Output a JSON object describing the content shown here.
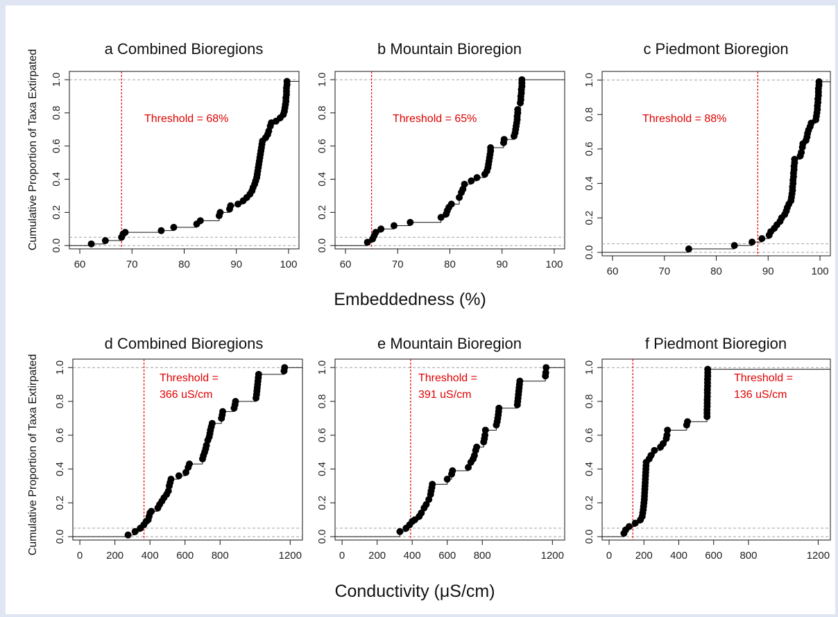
{
  "figure": {
    "ylabel_top": "Cumulative Proportion of Taxa Extirpated",
    "ylabel_bottom": "Cumulative Proportion of Taxa Extirpated",
    "xlabel_top": "Embeddedness (%)",
    "xlabel_bottom": "Conductivity (μS/cm)"
  },
  "colors": {
    "points": "#000000",
    "threshold": "#e00000",
    "refline": "#a0a0a0"
  },
  "chart_data": [
    {
      "id": "a",
      "type": "scatter",
      "title": "a  Combined Bioregions",
      "xlim": [
        58,
        102
      ],
      "ylim": [
        -0.02,
        1.05
      ],
      "xticks": [
        60,
        70,
        80,
        90,
        100
      ],
      "yticks": [
        0.0,
        0.2,
        0.4,
        0.6,
        0.8,
        1.0
      ],
      "threshold": {
        "x": 68,
        "label": [
          "Threshold = 68%"
        ]
      },
      "points": [
        [
          62.2,
          0.01
        ],
        [
          64.9,
          0.03
        ],
        [
          68.0,
          0.05
        ],
        [
          68.3,
          0.07
        ],
        [
          68.7,
          0.08
        ],
        [
          75.6,
          0.09
        ],
        [
          78.0,
          0.11
        ],
        [
          82.4,
          0.13
        ],
        [
          83.1,
          0.15
        ],
        [
          86.7,
          0.18
        ],
        [
          86.9,
          0.2
        ],
        [
          88.7,
          0.22
        ],
        [
          88.9,
          0.24
        ],
        [
          90.3,
          0.25
        ],
        [
          91.3,
          0.27
        ],
        [
          92.0,
          0.29
        ],
        [
          92.6,
          0.31
        ],
        [
          93.0,
          0.33
        ],
        [
          93.2,
          0.35
        ],
        [
          93.5,
          0.37
        ],
        [
          93.7,
          0.39
        ],
        [
          93.9,
          0.41
        ],
        [
          94.0,
          0.43
        ],
        [
          94.1,
          0.45
        ],
        [
          94.2,
          0.47
        ],
        [
          94.3,
          0.49
        ],
        [
          94.4,
          0.51
        ],
        [
          94.5,
          0.53
        ],
        [
          94.6,
          0.55
        ],
        [
          94.7,
          0.57
        ],
        [
          94.8,
          0.59
        ],
        [
          94.9,
          0.61
        ],
        [
          95.0,
          0.63
        ],
        [
          95.6,
          0.65
        ],
        [
          96.0,
          0.67
        ],
        [
          96.2,
          0.69
        ],
        [
          96.5,
          0.72
        ],
        [
          96.7,
          0.74
        ],
        [
          97.6,
          0.75
        ],
        [
          98.4,
          0.77
        ],
        [
          99.0,
          0.79
        ],
        [
          99.2,
          0.81
        ],
        [
          99.3,
          0.83
        ],
        [
          99.4,
          0.85
        ],
        [
          99.5,
          0.87
        ],
        [
          99.5,
          0.89
        ],
        [
          99.6,
          0.91
        ],
        [
          99.6,
          0.93
        ],
        [
          99.6,
          0.95
        ],
        [
          99.7,
          0.97
        ],
        [
          99.7,
          0.99
        ]
      ]
    },
    {
      "id": "b",
      "type": "scatter",
      "title": "b  Mountain Bioregion",
      "xlim": [
        58,
        102
      ],
      "ylim": [
        -0.02,
        1.05
      ],
      "xticks": [
        60,
        70,
        80,
        90,
        100
      ],
      "yticks": [
        0.0,
        0.2,
        0.4,
        0.6,
        0.8,
        1.0
      ],
      "threshold": {
        "x": 65,
        "label": [
          "Threshold = 65%"
        ]
      },
      "points": [
        [
          64.2,
          0.02
        ],
        [
          65.2,
          0.04
        ],
        [
          65.5,
          0.06
        ],
        [
          65.8,
          0.08
        ],
        [
          66.8,
          0.1
        ],
        [
          69.3,
          0.12
        ],
        [
          72.4,
          0.14
        ],
        [
          78.3,
          0.17
        ],
        [
          79.3,
          0.19
        ],
        [
          79.5,
          0.21
        ],
        [
          79.8,
          0.23
        ],
        [
          80.3,
          0.25
        ],
        [
          81.8,
          0.29
        ],
        [
          82.2,
          0.32
        ],
        [
          82.5,
          0.34
        ],
        [
          82.8,
          0.37
        ],
        [
          84.1,
          0.39
        ],
        [
          85.2,
          0.41
        ],
        [
          86.7,
          0.43
        ],
        [
          87.1,
          0.45
        ],
        [
          87.3,
          0.47
        ],
        [
          87.4,
          0.49
        ],
        [
          87.5,
          0.51
        ],
        [
          87.6,
          0.53
        ],
        [
          87.7,
          0.55
        ],
        [
          87.8,
          0.57
        ],
        [
          87.8,
          0.59
        ],
        [
          90.3,
          0.62
        ],
        [
          90.4,
          0.64
        ],
        [
          92.3,
          0.66
        ],
        [
          92.5,
          0.68
        ],
        [
          92.6,
          0.7
        ],
        [
          92.7,
          0.72
        ],
        [
          92.8,
          0.74
        ],
        [
          92.9,
          0.76
        ],
        [
          92.9,
          0.78
        ],
        [
          93.0,
          0.8
        ],
        [
          93.0,
          0.82
        ],
        [
          93.5,
          0.86
        ],
        [
          93.6,
          0.88
        ],
        [
          93.6,
          0.9
        ],
        [
          93.7,
          0.92
        ],
        [
          93.7,
          0.94
        ],
        [
          93.8,
          0.96
        ],
        [
          93.8,
          0.98
        ],
        [
          93.8,
          1.0
        ]
      ]
    },
    {
      "id": "c",
      "type": "scatter",
      "title": "c  Piedmont Bioregion",
      "xlim": [
        58,
        102
      ],
      "ylim": [
        -0.02,
        1.05
      ],
      "xticks": [
        60,
        70,
        80,
        90,
        100
      ],
      "yticks": [
        0.0,
        0.2,
        0.4,
        0.6,
        0.8,
        1.0
      ],
      "threshold": {
        "x": 88,
        "label": [
          "Threshold = 88%"
        ]
      },
      "points": [
        [
          74.7,
          0.02
        ],
        [
          83.5,
          0.04
        ],
        [
          86.9,
          0.06
        ],
        [
          88.8,
          0.08
        ],
        [
          90.2,
          0.1
        ],
        [
          90.5,
          0.12
        ],
        [
          91.2,
          0.14
        ],
        [
          91.7,
          0.16
        ],
        [
          92.3,
          0.18
        ],
        [
          92.6,
          0.2
        ],
        [
          93.2,
          0.22
        ],
        [
          93.5,
          0.24
        ],
        [
          93.7,
          0.26
        ],
        [
          94.0,
          0.28
        ],
        [
          94.4,
          0.3
        ],
        [
          94.5,
          0.32
        ],
        [
          94.6,
          0.34
        ],
        [
          94.7,
          0.36
        ],
        [
          94.7,
          0.38
        ],
        [
          94.8,
          0.4
        ],
        [
          94.8,
          0.42
        ],
        [
          94.9,
          0.44
        ],
        [
          94.9,
          0.46
        ],
        [
          95.0,
          0.48
        ],
        [
          95.0,
          0.5
        ],
        [
          95.1,
          0.52
        ],
        [
          95.1,
          0.54
        ],
        [
          96.2,
          0.56
        ],
        [
          96.4,
          0.58
        ],
        [
          96.6,
          0.61
        ],
        [
          96.7,
          0.63
        ],
        [
          97.3,
          0.65
        ],
        [
          97.5,
          0.67
        ],
        [
          97.6,
          0.69
        ],
        [
          97.8,
          0.71
        ],
        [
          98.1,
          0.73
        ],
        [
          98.3,
          0.75
        ],
        [
          99.2,
          0.77
        ],
        [
          99.3,
          0.79
        ],
        [
          99.4,
          0.81
        ],
        [
          99.5,
          0.83
        ],
        [
          99.5,
          0.85
        ],
        [
          99.6,
          0.87
        ],
        [
          99.6,
          0.89
        ],
        [
          99.7,
          0.91
        ],
        [
          99.7,
          0.93
        ],
        [
          99.7,
          0.95
        ],
        [
          99.8,
          0.97
        ],
        [
          99.8,
          0.99
        ]
      ]
    },
    {
      "id": "d",
      "type": "scatter",
      "title": "d  Combined Bioregions",
      "xlim": [
        -40,
        1270
      ],
      "ylim": [
        -0.02,
        1.05
      ],
      "xticks": [
        0,
        200,
        400,
        600,
        800,
        1200
      ],
      "yticks": [
        0.0,
        0.2,
        0.4,
        0.6,
        0.8,
        1.0
      ],
      "threshold": {
        "x": 366,
        "label": [
          "Threshold =",
          "366 uS/cm"
        ]
      },
      "points": [
        [
          275,
          0.01
        ],
        [
          315,
          0.03
        ],
        [
          345,
          0.05
        ],
        [
          365,
          0.07
        ],
        [
          378,
          0.09
        ],
        [
          390,
          0.1
        ],
        [
          395,
          0.12
        ],
        [
          400,
          0.14
        ],
        [
          408,
          0.15
        ],
        [
          445,
          0.17
        ],
        [
          455,
          0.19
        ],
        [
          468,
          0.21
        ],
        [
          480,
          0.23
        ],
        [
          495,
          0.25
        ],
        [
          505,
          0.27
        ],
        [
          510,
          0.3
        ],
        [
          515,
          0.32
        ],
        [
          520,
          0.34
        ],
        [
          565,
          0.36
        ],
        [
          605,
          0.38
        ],
        [
          618,
          0.41
        ],
        [
          625,
          0.43
        ],
        [
          700,
          0.46
        ],
        [
          705,
          0.48
        ],
        [
          712,
          0.5
        ],
        [
          718,
          0.52
        ],
        [
          722,
          0.54
        ],
        [
          730,
          0.57
        ],
        [
          738,
          0.59
        ],
        [
          742,
          0.61
        ],
        [
          745,
          0.63
        ],
        [
          750,
          0.65
        ],
        [
          755,
          0.67
        ],
        [
          808,
          0.7
        ],
        [
          812,
          0.72
        ],
        [
          815,
          0.74
        ],
        [
          880,
          0.76
        ],
        [
          885,
          0.78
        ],
        [
          888,
          0.8
        ],
        [
          1005,
          0.82
        ],
        [
          1008,
          0.84
        ],
        [
          1010,
          0.86
        ],
        [
          1012,
          0.88
        ],
        [
          1014,
          0.9
        ],
        [
          1016,
          0.92
        ],
        [
          1018,
          0.94
        ],
        [
          1020,
          0.96
        ],
        [
          1165,
          0.98
        ],
        [
          1168,
          1.0
        ]
      ]
    },
    {
      "id": "e",
      "type": "scatter",
      "title": "e  Mountain Bioregion",
      "xlim": [
        -40,
        1270
      ],
      "ylim": [
        -0.02,
        1.05
      ],
      "xticks": [
        0,
        200,
        400,
        600,
        800,
        1200
      ],
      "yticks": [
        0.0,
        0.2,
        0.4,
        0.6,
        0.8,
        1.0
      ],
      "threshold": {
        "x": 391,
        "label": [
          "Threshold =",
          "391 uS/cm"
        ]
      },
      "points": [
        [
          330,
          0.03
        ],
        [
          365,
          0.05
        ],
        [
          385,
          0.07
        ],
        [
          400,
          0.09
        ],
        [
          415,
          0.1
        ],
        [
          440,
          0.12
        ],
        [
          452,
          0.14
        ],
        [
          468,
          0.17
        ],
        [
          480,
          0.19
        ],
        [
          495,
          0.22
        ],
        [
          505,
          0.25
        ],
        [
          508,
          0.27
        ],
        [
          512,
          0.29
        ],
        [
          515,
          0.31
        ],
        [
          600,
          0.34
        ],
        [
          625,
          0.37
        ],
        [
          630,
          0.39
        ],
        [
          720,
          0.41
        ],
        [
          735,
          0.44
        ],
        [
          748,
          0.46
        ],
        [
          755,
          0.48
        ],
        [
          762,
          0.51
        ],
        [
          768,
          0.53
        ],
        [
          808,
          0.56
        ],
        [
          812,
          0.58
        ],
        [
          815,
          0.6
        ],
        [
          818,
          0.63
        ],
        [
          880,
          0.66
        ],
        [
          885,
          0.68
        ],
        [
          888,
          0.7
        ],
        [
          891,
          0.72
        ],
        [
          893,
          0.74
        ],
        [
          895,
          0.76
        ],
        [
          1000,
          0.78
        ],
        [
          1002,
          0.8
        ],
        [
          1004,
          0.82
        ],
        [
          1006,
          0.84
        ],
        [
          1008,
          0.86
        ],
        [
          1010,
          0.88
        ],
        [
          1012,
          0.9
        ],
        [
          1014,
          0.92
        ],
        [
          1160,
          0.95
        ],
        [
          1162,
          0.97
        ],
        [
          1164,
          1.0
        ]
      ]
    },
    {
      "id": "f",
      "type": "scatter",
      "title": "f  Piedmont Bioregion",
      "xlim": [
        -40,
        1270
      ],
      "ylim": [
        -0.02,
        1.05
      ],
      "xticks": [
        0,
        200,
        400,
        600,
        800,
        1200
      ],
      "yticks": [
        0.0,
        0.2,
        0.4,
        0.6,
        0.8,
        1.0
      ],
      "threshold": {
        "x": 136,
        "label": [
          "Threshold =",
          "136 uS/cm"
        ]
      },
      "points": [
        [
          85,
          0.02
        ],
        [
          95,
          0.04
        ],
        [
          115,
          0.06
        ],
        [
          150,
          0.08
        ],
        [
          180,
          0.1
        ],
        [
          190,
          0.12
        ],
        [
          193,
          0.14
        ],
        [
          196,
          0.16
        ],
        [
          198,
          0.18
        ],
        [
          200,
          0.2
        ],
        [
          202,
          0.22
        ],
        [
          203,
          0.24
        ],
        [
          204,
          0.26
        ],
        [
          205,
          0.28
        ],
        [
          206,
          0.3
        ],
        [
          207,
          0.32
        ],
        [
          208,
          0.34
        ],
        [
          209,
          0.36
        ],
        [
          210,
          0.38
        ],
        [
          211,
          0.4
        ],
        [
          212,
          0.42
        ],
        [
          213,
          0.44
        ],
        [
          230,
          0.46
        ],
        [
          240,
          0.48
        ],
        [
          260,
          0.51
        ],
        [
          295,
          0.53
        ],
        [
          310,
          0.55
        ],
        [
          328,
          0.58
        ],
        [
          332,
          0.6
        ],
        [
          335,
          0.63
        ],
        [
          445,
          0.66
        ],
        [
          450,
          0.68
        ],
        [
          562,
          0.71
        ],
        [
          562,
          0.73
        ],
        [
          562,
          0.75
        ],
        [
          563,
          0.77
        ],
        [
          563,
          0.79
        ],
        [
          563,
          0.81
        ],
        [
          564,
          0.83
        ],
        [
          564,
          0.85
        ],
        [
          564,
          0.87
        ],
        [
          565,
          0.89
        ],
        [
          565,
          0.91
        ],
        [
          565,
          0.93
        ],
        [
          566,
          0.95
        ],
        [
          566,
          0.97
        ],
        [
          566,
          0.99
        ]
      ]
    }
  ]
}
